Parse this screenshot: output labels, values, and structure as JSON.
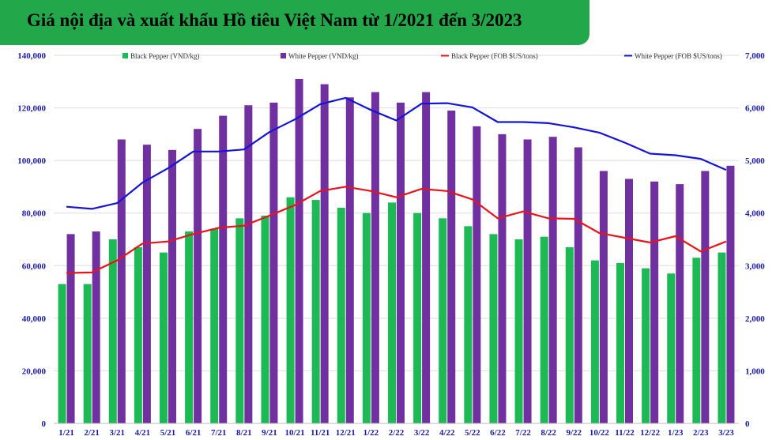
{
  "title": "Giá nội địa và xuất khẩu Hồ tiêu Việt Nam từ 1/2021 đến 3/2023",
  "colors": {
    "title_bg": "#22a84a",
    "black_bar": "#1db954",
    "white_bar": "#7030a0",
    "black_line": "#e8141c",
    "white_line": "#1414d8",
    "axis_text": "#1a1aa6",
    "grid": "#dedede"
  },
  "chart_data": {
    "type": "bar",
    "categories": [
      "1/21",
      "2/21",
      "3/21",
      "4/21",
      "5/21",
      "6/21",
      "7/21",
      "8/21",
      "9/21",
      "10/21",
      "11/21",
      "12/21",
      "1/22",
      "2/22",
      "3/22",
      "4/22",
      "5/22",
      "6/22",
      "7/22",
      "8/22",
      "9/22",
      "10/22",
      "11/22",
      "12/22",
      "1/23",
      "2/23",
      "3/23"
    ],
    "series": [
      {
        "name": "Black Pepper (VND/kg)",
        "type": "bar",
        "axis": "left",
        "values": [
          53000,
          53000,
          70000,
          67000,
          65000,
          73000,
          74000,
          78000,
          79000,
          86000,
          85000,
          82000,
          80000,
          84000,
          80000,
          78000,
          75000,
          72000,
          70000,
          71000,
          67000,
          62000,
          61000,
          59000,
          57000,
          63000,
          65000
        ]
      },
      {
        "name": "White Pepper (VND/kg)",
        "type": "bar",
        "axis": "left",
        "values": [
          72000,
          73000,
          108000,
          106000,
          104000,
          112000,
          117000,
          121000,
          122000,
          131000,
          129000,
          124000,
          126000,
          122000,
          126000,
          119000,
          113000,
          110000,
          108000,
          109000,
          105000,
          96000,
          93000,
          92000,
          91000,
          96000,
          98000
        ]
      },
      {
        "name": "Black Pepper (FOB $US/tons)",
        "type": "line",
        "axis": "right",
        "values": [
          2860,
          2870,
          3100,
          3420,
          3460,
          3600,
          3720,
          3760,
          3950,
          4150,
          4420,
          4500,
          4420,
          4300,
          4460,
          4420,
          4260,
          3900,
          4030,
          3900,
          3890,
          3620,
          3530,
          3440,
          3560,
          3270,
          3460
        ]
      },
      {
        "name": "White Pepper (FOB $US/tons)",
        "type": "line",
        "axis": "right",
        "values": [
          4120,
          4080,
          4190,
          4580,
          4850,
          5170,
          5170,
          5210,
          5540,
          5780,
          6070,
          6190,
          5960,
          5760,
          6080,
          6090,
          6010,
          5730,
          5730,
          5710,
          5630,
          5530,
          5340,
          5130,
          5100,
          5030,
          4820
        ]
      }
    ],
    "y_left": {
      "min": 0,
      "max": 140000,
      "ticks": [
        "0",
        "20,000",
        "40,000",
        "60,000",
        "80,000",
        "100,000",
        "120,000",
        "140,000"
      ]
    },
    "y_right": {
      "min": 0,
      "max": 7000,
      "ticks": [
        "0",
        "1,000",
        "2,000",
        "3,000",
        "4,000",
        "5,000",
        "6,000",
        "7,000"
      ]
    },
    "grid": true,
    "legend_position": "top"
  }
}
